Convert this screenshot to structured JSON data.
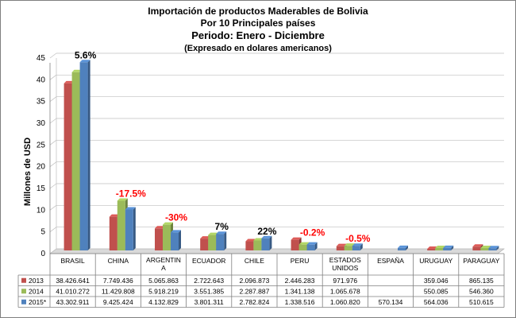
{
  "chart_data": {
    "type": "bar",
    "title_lines": [
      "Importación de productos Maderables de Bolivia",
      "Por 10 Principales países",
      "Periodo: Enero - Diciembre",
      "(Expresado en dolares americanos)"
    ],
    "ylabel": "Millones de USD",
    "xlabel": "",
    "ylim": [
      0,
      45
    ],
    "yticks": [
      0,
      5,
      10,
      15,
      20,
      25,
      30,
      35,
      40,
      45
    ],
    "grid": true,
    "legend": "in data table",
    "categories": [
      "BRASIL",
      "CHINA",
      "ARGENTINA",
      "ECUADOR",
      "CHILE",
      "PERU",
      "ESTADOS UNIDOS",
      "ESPAÑA",
      "URUGUAY",
      "PARAGUAY"
    ],
    "category_labels": [
      [
        "BRASIL"
      ],
      [
        "CHINA"
      ],
      [
        "ARGENTIN",
        "A"
      ],
      [
        "ECUADOR"
      ],
      [
        "CHILE"
      ],
      [
        "PERU"
      ],
      [
        "ESTADOS",
        "UNIDOS"
      ],
      [
        "ESPAÑA"
      ],
      [
        "URUGUAY"
      ],
      [
        "PARAGUAY"
      ]
    ],
    "series": [
      {
        "name": "2013",
        "color": "#C0504D",
        "values": [
          38.426641,
          7.749436,
          5.065863,
          2.722643,
          2.096873,
          2.446283,
          0.971976,
          0,
          0.359046,
          0.865135
        ],
        "table": [
          "38.426.641",
          "7.749.436",
          "5.065.863",
          "2.722.643",
          "2.096.873",
          "2.446.283",
          "971.976",
          "",
          "359.046",
          "865.135"
        ]
      },
      {
        "name": "2014",
        "color": "#9BBB59",
        "values": [
          41.010272,
          11.429808,
          5.918219,
          3.551385,
          2.287887,
          1.341138,
          1.065678,
          0,
          0.550085,
          0.54636
        ],
        "table": [
          "41.010.272",
          "11.429.808",
          "5.918.219",
          "3.551.385",
          "2.287.887",
          "1.341.138",
          "1.065.678",
          "",
          "550.085",
          "546.360"
        ]
      },
      {
        "name": "2015*",
        "color": "#4F81BD",
        "values": [
          43.302911,
          9.425424,
          4.132829,
          3.801311,
          2.782824,
          1.338516,
          1.06082,
          0.570134,
          0.564036,
          0.510615
        ],
        "table": [
          "43.302.911",
          "9.425.424",
          "4.132.829",
          "3.801.311",
          "2.782.824",
          "1.338.516",
          "1.060.820",
          "570.134",
          "564.036",
          "510.615"
        ]
      }
    ],
    "annotations": [
      {
        "category": 0,
        "text": "5.6%",
        "color": "#000000"
      },
      {
        "category": 1,
        "text": "-17.5%",
        "color": "#FF0000"
      },
      {
        "category": 2,
        "text": "-30%",
        "color": "#FF0000"
      },
      {
        "category": 3,
        "text": "7%",
        "color": "#000000"
      },
      {
        "category": 4,
        "text": "22%",
        "color": "#000000"
      },
      {
        "category": 5,
        "text": "-0.2%",
        "color": "#FF0000"
      },
      {
        "category": 6,
        "text": "-0.5%",
        "color": "#FF0000"
      }
    ]
  }
}
